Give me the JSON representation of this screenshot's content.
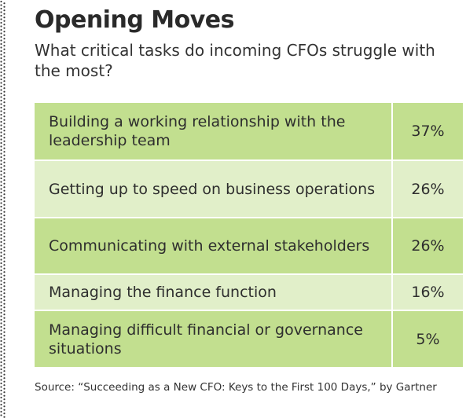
{
  "colors": {
    "row_dark": "#c2df8f",
    "row_light": "#e1efc9",
    "text": "#2a2a2a"
  },
  "chart_data": {
    "type": "table",
    "title": "Opening Moves",
    "subtitle": "What critical tasks do incoming CFOs struggle with the most?",
    "rows": [
      {
        "label": "Building a working relationship with the leadership team",
        "value": "37%"
      },
      {
        "label": "Getting up to speed on business operations",
        "value": "26%"
      },
      {
        "label": "Communicating with external stakeholders",
        "value": "26%"
      },
      {
        "label": "Managing the finance function",
        "value": "16%"
      },
      {
        "label": "Managing difficult financial or governance situations",
        "value": "5%"
      }
    ],
    "source": "Source: “Succeeding as a New CFO: Keys to the First 100 Days,” by Gartner"
  }
}
